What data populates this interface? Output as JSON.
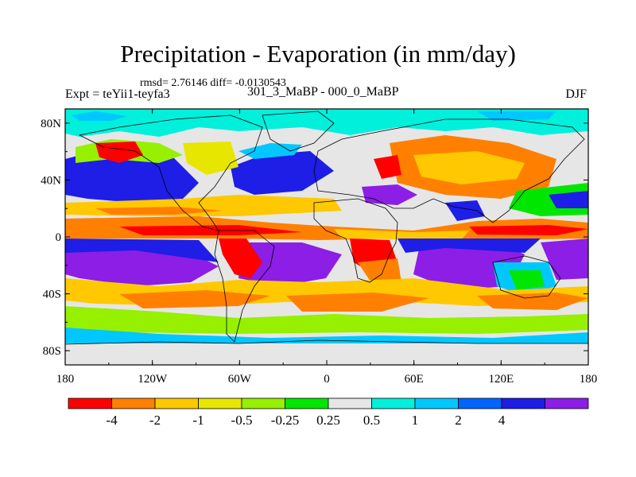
{
  "title": "Precipitation - Evaporation (in mm/day)",
  "stats": "rmsd= 2.76146 diff= -0.0130543",
  "experiment": "Expt = teYii1-teyfa3",
  "subtitle": "301_3_MaBP - 000_0_MaBP",
  "season": "DJF",
  "y_ticks": [
    {
      "label": "80N",
      "lat": 80
    },
    {
      "label": "40N",
      "lat": 40
    },
    {
      "label": "0",
      "lat": 0
    },
    {
      "label": "40S",
      "lat": -40
    },
    {
      "label": "80S",
      "lat": -80
    }
  ],
  "x_ticks": [
    {
      "label": "180",
      "lon": -180
    },
    {
      "label": "120W",
      "lon": -120
    },
    {
      "label": "60W",
      "lon": -60
    },
    {
      "label": "0",
      "lon": 0
    },
    {
      "label": "60E",
      "lon": 60
    },
    {
      "label": "120E",
      "lon": 120
    },
    {
      "label": "180",
      "lon": 180
    }
  ],
  "colorbar": {
    "colors": [
      "#ff0000",
      "#ff8000",
      "#ffc800",
      "#e6e600",
      "#96f000",
      "#00e600",
      "#e6e6e6",
      "#00f0dc",
      "#00c8ff",
      "#0064ff",
      "#1e1ee6",
      "#8c1ee6"
    ],
    "labels": [
      "-4",
      "-2",
      "-1",
      "-0.5",
      "-0.25",
      "0.25",
      "0.5",
      "1",
      "2",
      "4"
    ]
  },
  "map": {
    "ocean_background": "#e6e6e6",
    "frame_color": "#000000"
  }
}
